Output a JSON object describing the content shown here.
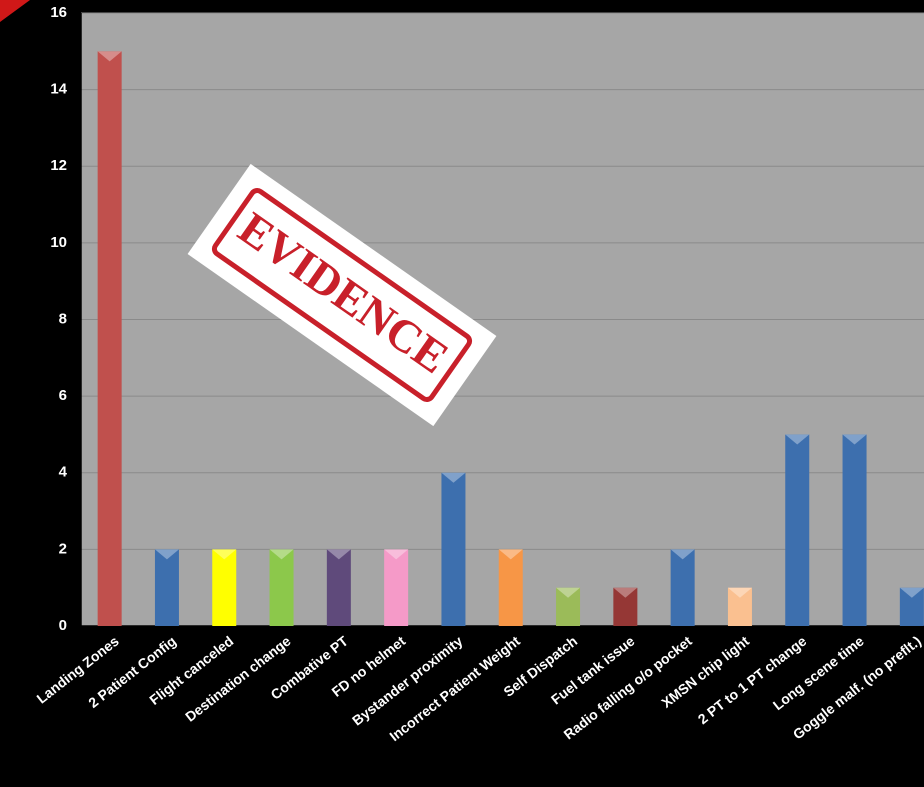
{
  "chart_data": {
    "type": "bar",
    "categories": [
      "Landing Zones",
      "2 Patient Config",
      "Flight canceled",
      "Destination change",
      "Combative PT",
      "FD no helmet",
      "Bystander proximity",
      "Incorrect Patient Weight",
      "Self Dispatch",
      "Fuel tank issue",
      "Radio falling o/o pocket",
      "XMSN chip light",
      "2 PT to 1 PT change",
      "Long scene time",
      "Goggle malf. (no preflt.)"
    ],
    "values": [
      15,
      2,
      2,
      2,
      2,
      2,
      4,
      2,
      1,
      1,
      2,
      1,
      5,
      5,
      1
    ],
    "colors": [
      "#c0504d",
      "#3d6fae",
      "#ffff00",
      "#8cc84b",
      "#5f4a7b",
      "#f59ac8",
      "#3d6fae",
      "#f79646",
      "#9bbb59",
      "#953735",
      "#3d6fae",
      "#fac090",
      "#3d6fae",
      "#3d6fae",
      "#3d6fae"
    ],
    "ylim": [
      0,
      16
    ],
    "yticks": [
      0,
      2,
      4,
      6,
      8,
      10,
      12,
      14,
      16
    ],
    "grid": true,
    "annotation": "EVIDENCE"
  }
}
